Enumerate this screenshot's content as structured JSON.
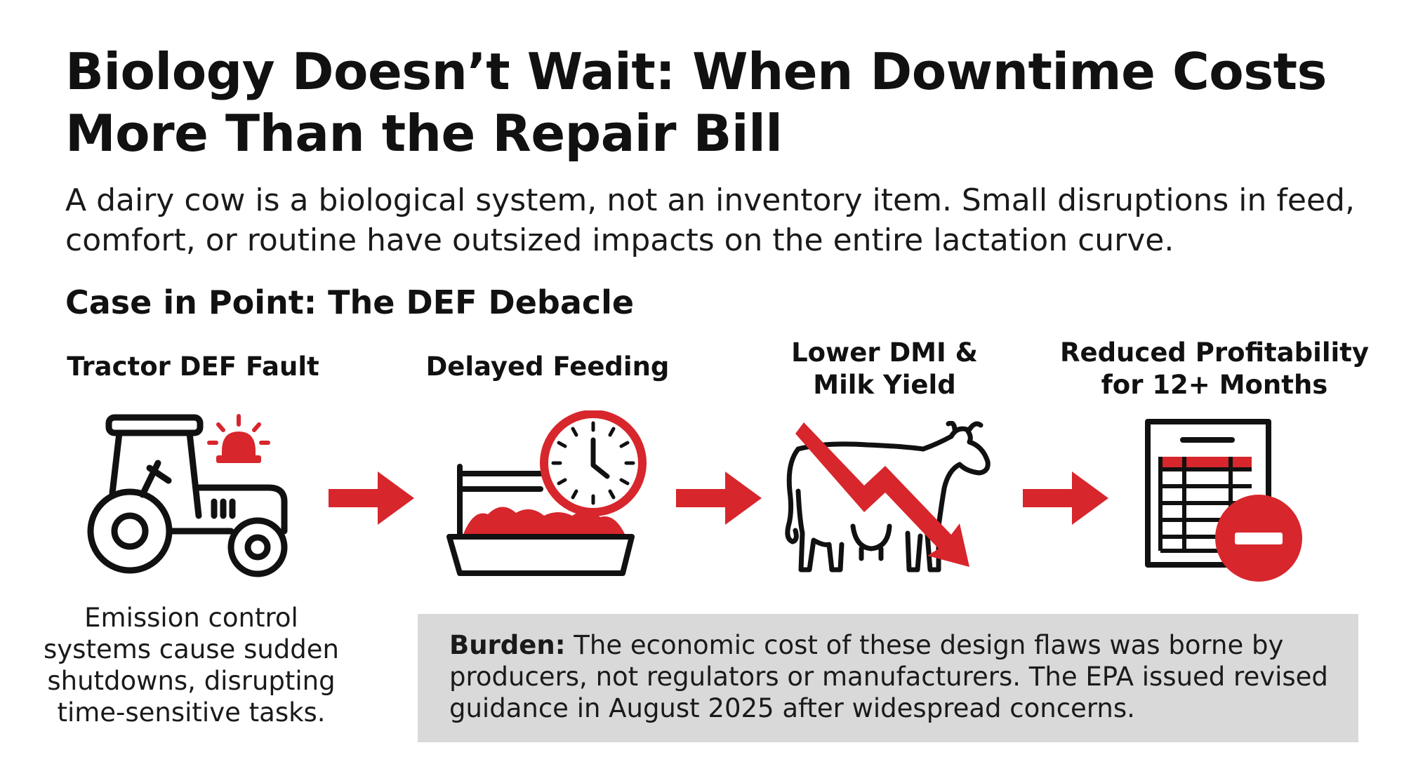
{
  "title": "Biology Doesn’t Wait: When Downtime Costs More Than the Repair Bill",
  "subtitle": "A dairy cow is a biological system, not an inventory item. Small disruptions in feed, comfort, or routine have outsized impacts on the entire lactation curve.",
  "section_title": "Case in Point: The DEF Debacle",
  "steps": [
    {
      "label": "Tractor DEF Fault",
      "icon": "tractor-alert-icon"
    },
    {
      "label": "Delayed Feeding",
      "icon": "feed-bunk-clock-icon"
    },
    {
      "label": "Lower DMI & Milk Yield",
      "icon": "cow-decline-icon"
    },
    {
      "label": "Reduced Profitability for 12+ Months",
      "icon": "ledger-minus-icon"
    }
  ],
  "caption": "Emission control systems cause sudden shutdowns, disrupting time-sensitive tasks.",
  "burden": {
    "label": "Burden:",
    "text": " The economic cost of these design flaws was borne by producers, not regulators or manufacturers. The EPA issued revised guidance in August 2025 after widespread concerns."
  },
  "colors": {
    "accent": "#d7262c",
    "text": "#111111",
    "box": "#d9d9d9"
  }
}
